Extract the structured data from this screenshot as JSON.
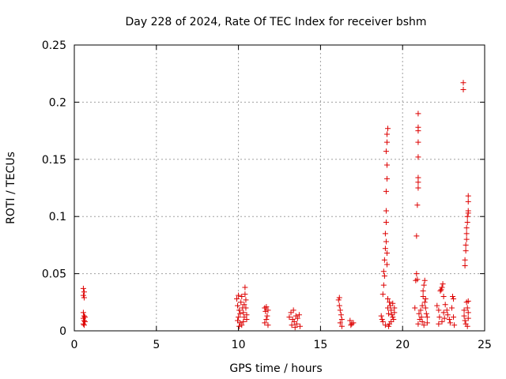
{
  "chart_data": {
    "type": "scatter",
    "title": "Day 228 of 2024, Rate Of TEC Index for receiver bshm",
    "xlabel": "GPS time / hours",
    "ylabel": "ROTI / TECUs",
    "xlim": [
      0,
      25
    ],
    "ylim": [
      0,
      0.25
    ],
    "x_ticks": [
      0,
      5,
      10,
      15,
      20,
      25
    ],
    "x_tick_labels": [
      "0",
      "5",
      "10",
      "15",
      "20",
      "25"
    ],
    "y_ticks": [
      0,
      0.05,
      0.1,
      0.15,
      0.2,
      0.25
    ],
    "y_tick_labels": [
      "0",
      "0.05",
      "0.1",
      "0.15",
      "0.2",
      "0.25"
    ],
    "grid": true,
    "marker": "plus",
    "marker_color": "#dd0000",
    "points": [
      [
        0.55,
        0.037
      ],
      [
        0.6,
        0.034
      ],
      [
        0.55,
        0.031
      ],
      [
        0.6,
        0.029
      ],
      [
        0.55,
        0.016
      ],
      [
        0.6,
        0.013
      ],
      [
        0.55,
        0.011
      ],
      [
        0.6,
        0.009
      ],
      [
        0.55,
        0.006
      ],
      [
        0.6,
        0.005
      ],
      [
        0.65,
        0.012
      ],
      [
        0.65,
        0.008
      ],
      [
        9.9,
        0.028
      ],
      [
        9.95,
        0.022
      ],
      [
        10.0,
        0.031
      ],
      [
        10.05,
        0.018
      ],
      [
        10.1,
        0.015
      ],
      [
        10.0,
        0.012
      ],
      [
        9.95,
        0.009
      ],
      [
        10.1,
        0.007
      ],
      [
        10.15,
        0.025
      ],
      [
        10.2,
        0.03
      ],
      [
        10.25,
        0.02
      ],
      [
        10.3,
        0.016
      ],
      [
        10.35,
        0.012
      ],
      [
        10.4,
        0.038
      ],
      [
        10.4,
        0.032
      ],
      [
        10.45,
        0.027
      ],
      [
        10.45,
        0.02
      ],
      [
        10.3,
        0.008
      ],
      [
        10.2,
        0.005
      ],
      [
        10.5,
        0.014
      ],
      [
        10.5,
        0.01
      ],
      [
        10.05,
        0.004
      ],
      [
        10.35,
        0.023
      ],
      [
        11.6,
        0.02
      ],
      [
        11.65,
        0.017
      ],
      [
        11.7,
        0.021
      ],
      [
        11.75,
        0.013
      ],
      [
        11.7,
        0.01
      ],
      [
        11.6,
        0.007
      ],
      [
        11.8,
        0.018
      ],
      [
        11.8,
        0.005
      ],
      [
        13.1,
        0.012
      ],
      [
        13.2,
        0.016
      ],
      [
        13.3,
        0.01
      ],
      [
        13.35,
        0.018
      ],
      [
        13.4,
        0.008
      ],
      [
        13.5,
        0.013
      ],
      [
        13.55,
        0.006
      ],
      [
        13.6,
        0.011
      ],
      [
        13.7,
        0.014
      ],
      [
        13.75,
        0.004
      ],
      [
        13.25,
        0.005
      ],
      [
        13.45,
        0.003
      ],
      [
        16.1,
        0.027
      ],
      [
        16.15,
        0.022
      ],
      [
        16.2,
        0.018
      ],
      [
        16.25,
        0.014
      ],
      [
        16.3,
        0.01
      ],
      [
        16.2,
        0.007
      ],
      [
        16.15,
        0.029
      ],
      [
        16.3,
        0.004
      ],
      [
        16.8,
        0.009
      ],
      [
        16.9,
        0.006
      ],
      [
        17.0,
        0.007
      ],
      [
        16.85,
        0.005
      ],
      [
        18.7,
        0.013
      ],
      [
        18.75,
        0.01
      ],
      [
        18.8,
        0.008
      ],
      [
        18.8,
        0.032
      ],
      [
        18.85,
        0.04
      ],
      [
        18.85,
        0.052
      ],
      [
        18.9,
        0.062
      ],
      [
        18.9,
        0.048
      ],
      [
        18.95,
        0.072
      ],
      [
        18.95,
        0.085
      ],
      [
        19.0,
        0.105
      ],
      [
        19.0,
        0.095
      ],
      [
        19.0,
        0.122
      ],
      [
        19.05,
        0.133
      ],
      [
        19.05,
        0.145
      ],
      [
        19.0,
        0.157
      ],
      [
        19.05,
        0.165
      ],
      [
        19.05,
        0.172
      ],
      [
        19.1,
        0.177
      ],
      [
        19.0,
        0.078
      ],
      [
        19.05,
        0.068
      ],
      [
        19.05,
        0.058
      ],
      [
        19.1,
        0.028
      ],
      [
        19.1,
        0.02
      ],
      [
        19.15,
        0.015
      ],
      [
        19.2,
        0.025
      ],
      [
        19.25,
        0.022
      ],
      [
        19.3,
        0.018
      ],
      [
        19.35,
        0.014
      ],
      [
        19.4,
        0.012
      ],
      [
        19.45,
        0.01
      ],
      [
        19.3,
        0.008
      ],
      [
        19.2,
        0.006
      ],
      [
        19.5,
        0.02
      ],
      [
        19.5,
        0.016
      ],
      [
        19.15,
        0.004
      ],
      [
        18.95,
        0.005
      ],
      [
        19.4,
        0.024
      ],
      [
        20.75,
        0.02
      ],
      [
        20.8,
        0.044
      ],
      [
        20.85,
        0.05
      ],
      [
        20.9,
        0.045
      ],
      [
        20.85,
        0.083
      ],
      [
        20.9,
        0.11
      ],
      [
        20.95,
        0.125
      ],
      [
        20.95,
        0.13
      ],
      [
        20.95,
        0.134
      ],
      [
        20.95,
        0.152
      ],
      [
        20.95,
        0.165
      ],
      [
        20.95,
        0.175
      ],
      [
        20.95,
        0.178
      ],
      [
        20.95,
        0.19
      ],
      [
        21.0,
        0.015
      ],
      [
        21.05,
        0.01
      ],
      [
        20.95,
        0.006
      ],
      [
        21.1,
        0.018
      ],
      [
        21.15,
        0.012
      ],
      [
        21.2,
        0.008
      ],
      [
        21.25,
        0.03
      ],
      [
        21.25,
        0.035
      ],
      [
        21.3,
        0.04
      ],
      [
        21.35,
        0.044
      ],
      [
        21.35,
        0.025
      ],
      [
        21.4,
        0.02
      ],
      [
        21.45,
        0.015
      ],
      [
        21.5,
        0.012
      ],
      [
        21.5,
        0.007
      ],
      [
        21.3,
        0.005
      ],
      [
        21.4,
        0.028
      ],
      [
        21.2,
        0.022
      ],
      [
        22.1,
        0.022
      ],
      [
        22.2,
        0.018
      ],
      [
        22.25,
        0.012
      ],
      [
        22.3,
        0.035
      ],
      [
        22.35,
        0.036
      ],
      [
        22.4,
        0.038
      ],
      [
        22.45,
        0.041
      ],
      [
        22.5,
        0.03
      ],
      [
        22.5,
        0.016
      ],
      [
        22.55,
        0.011
      ],
      [
        22.6,
        0.023
      ],
      [
        22.7,
        0.018
      ],
      [
        22.75,
        0.014
      ],
      [
        22.85,
        0.01
      ],
      [
        23.0,
        0.02
      ],
      [
        23.05,
        0.03
      ],
      [
        23.1,
        0.028
      ],
      [
        23.1,
        0.012
      ],
      [
        22.9,
        0.007
      ],
      [
        22.4,
        0.008
      ],
      [
        23.15,
        0.005
      ],
      [
        22.2,
        0.006
      ],
      [
        23.7,
        0.217
      ],
      [
        23.7,
        0.211
      ],
      [
        23.8,
        0.057
      ],
      [
        23.8,
        0.062
      ],
      [
        23.85,
        0.07
      ],
      [
        23.85,
        0.075
      ],
      [
        23.9,
        0.08
      ],
      [
        23.9,
        0.085
      ],
      [
        23.9,
        0.09
      ],
      [
        23.95,
        0.095
      ],
      [
        23.95,
        0.1
      ],
      [
        24.0,
        0.103
      ],
      [
        24.0,
        0.105
      ],
      [
        24.0,
        0.113
      ],
      [
        24.0,
        0.118
      ],
      [
        23.75,
        0.013
      ],
      [
        23.8,
        0.009
      ],
      [
        23.85,
        0.006
      ],
      [
        23.9,
        0.025
      ],
      [
        23.95,
        0.02
      ],
      [
        24.0,
        0.016
      ],
      [
        24.0,
        0.011
      ],
      [
        23.95,
        0.004
      ],
      [
        23.75,
        0.018
      ],
      [
        24.0,
        0.026
      ]
    ]
  }
}
